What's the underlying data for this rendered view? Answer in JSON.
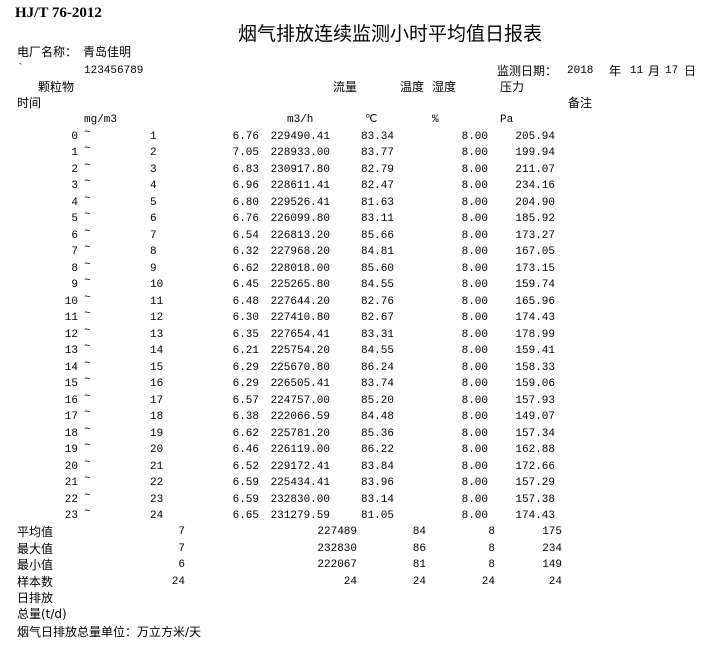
{
  "header": {
    "standard": "HJ/T 76-2012",
    "title": "烟气排放连续监测小时平均值日报表",
    "plant_label": "电厂名称：",
    "plant_name": "青岛佳明",
    "mark": "`",
    "code": "123456789",
    "date_label": "监测日期：",
    "year": "2018",
    "year_unit": "年",
    "month": "11",
    "month_unit": "月",
    "day": "17",
    "day_unit": "日"
  },
  "columns": {
    "pm": "颗粒物",
    "flow": "流量",
    "temp": "温度",
    "humidity": "湿度",
    "pressure": "压力",
    "time": "时间",
    "remark": "备注",
    "pm_unit": "mg/m3",
    "flow_unit": "m3/h",
    "temp_unit": "℃",
    "humidity_unit": "%",
    "pressure_unit": "Pa"
  },
  "rows": [
    {
      "start": "0",
      "end": "1",
      "pm": "6.76",
      "flow": "229490.41",
      "temp": "83.34",
      "humidity": "8.00",
      "pressure": "205.94"
    },
    {
      "start": "1",
      "end": "2",
      "pm": "7.05",
      "flow": "228933.00",
      "temp": "83.77",
      "humidity": "8.00",
      "pressure": "199.94"
    },
    {
      "start": "2",
      "end": "3",
      "pm": "6.83",
      "flow": "230917.80",
      "temp": "82.79",
      "humidity": "8.00",
      "pressure": "211.07"
    },
    {
      "start": "3",
      "end": "4",
      "pm": "6.96",
      "flow": "228611.41",
      "temp": "82.47",
      "humidity": "8.00",
      "pressure": "234.16"
    },
    {
      "start": "4",
      "end": "5",
      "pm": "6.80",
      "flow": "229526.41",
      "temp": "81.63",
      "humidity": "8.00",
      "pressure": "204.90"
    },
    {
      "start": "5",
      "end": "6",
      "pm": "6.76",
      "flow": "226099.80",
      "temp": "83.11",
      "humidity": "8.00",
      "pressure": "185.92"
    },
    {
      "start": "6",
      "end": "7",
      "pm": "6.54",
      "flow": "226813.20",
      "temp": "85.66",
      "humidity": "8.00",
      "pressure": "173.27"
    },
    {
      "start": "7",
      "end": "8",
      "pm": "6.32",
      "flow": "227968.20",
      "temp": "84.81",
      "humidity": "8.00",
      "pressure": "167.05"
    },
    {
      "start": "8",
      "end": "9",
      "pm": "6.62",
      "flow": "228018.00",
      "temp": "85.60",
      "humidity": "8.00",
      "pressure": "173.15"
    },
    {
      "start": "9",
      "end": "10",
      "pm": "6.45",
      "flow": "225265.80",
      "temp": "84.55",
      "humidity": "8.00",
      "pressure": "159.74"
    },
    {
      "start": "10",
      "end": "11",
      "pm": "6.48",
      "flow": "227644.20",
      "temp": "82.76",
      "humidity": "8.00",
      "pressure": "165.96"
    },
    {
      "start": "11",
      "end": "12",
      "pm": "6.30",
      "flow": "227410.80",
      "temp": "82.67",
      "humidity": "8.00",
      "pressure": "174.43"
    },
    {
      "start": "12",
      "end": "13",
      "pm": "6.35",
      "flow": "227654.41",
      "temp": "83.31",
      "humidity": "8.00",
      "pressure": "178.99"
    },
    {
      "start": "13",
      "end": "14",
      "pm": "6.21",
      "flow": "225754.20",
      "temp": "84.55",
      "humidity": "8.00",
      "pressure": "159.41"
    },
    {
      "start": "14",
      "end": "15",
      "pm": "6.29",
      "flow": "225670.80",
      "temp": "86.24",
      "humidity": "8.00",
      "pressure": "158.33"
    },
    {
      "start": "15",
      "end": "16",
      "pm": "6.29",
      "flow": "226505.41",
      "temp": "83.74",
      "humidity": "8.00",
      "pressure": "159.06"
    },
    {
      "start": "16",
      "end": "17",
      "pm": "6.57",
      "flow": "224757.00",
      "temp": "85.20",
      "humidity": "8.00",
      "pressure": "157.93"
    },
    {
      "start": "17",
      "end": "18",
      "pm": "6.38",
      "flow": "222066.59",
      "temp": "84.48",
      "humidity": "8.00",
      "pressure": "149.07"
    },
    {
      "start": "18",
      "end": "19",
      "pm": "6.62",
      "flow": "225781.20",
      "temp": "85.36",
      "humidity": "8.00",
      "pressure": "157.34"
    },
    {
      "start": "19",
      "end": "20",
      "pm": "6.46",
      "flow": "226119.00",
      "temp": "86.22",
      "humidity": "8.00",
      "pressure": "162.88"
    },
    {
      "start": "20",
      "end": "21",
      "pm": "6.52",
      "flow": "229172.41",
      "temp": "83.84",
      "humidity": "8.00",
      "pressure": "172.66"
    },
    {
      "start": "21",
      "end": "22",
      "pm": "6.59",
      "flow": "225434.41",
      "temp": "83.96",
      "humidity": "8.00",
      "pressure": "157.29"
    },
    {
      "start": "22",
      "end": "23",
      "pm": "6.59",
      "flow": "232830.00",
      "temp": "83.14",
      "humidity": "8.00",
      "pressure": "157.38"
    },
    {
      "start": "23",
      "end": "24",
      "pm": "6.65",
      "flow": "231279.59",
      "temp": "81.05",
      "humidity": "8.00",
      "pressure": "174.43"
    }
  ],
  "separator": "~",
  "summary": [
    {
      "label": "平均值",
      "pm": "7",
      "flow": "227489",
      "temp": "84",
      "humidity": "8",
      "pressure": "175"
    },
    {
      "label": "最大值",
      "pm": "7",
      "flow": "232830",
      "temp": "86",
      "humidity": "8",
      "pressure": "234"
    },
    {
      "label": "最小值",
      "pm": "6",
      "flow": "222067",
      "temp": "81",
      "humidity": "8",
      "pressure": "149"
    },
    {
      "label": "样本数",
      "pm": "24",
      "flow": "24",
      "temp": "24",
      "humidity": "24",
      "pressure": "24"
    }
  ],
  "footer": {
    "daily_label": "日排放",
    "total_label": "总量(t/d)",
    "unit_note": "烟气日排放总量单位：万立方米/天"
  }
}
